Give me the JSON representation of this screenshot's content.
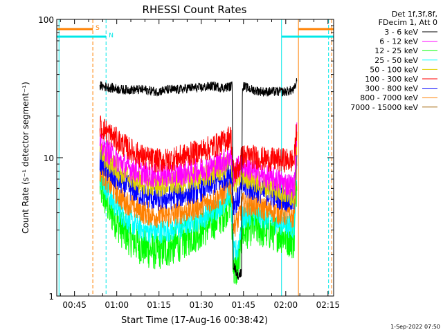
{
  "chart_data": {
    "type": "line",
    "title": "RHESSI Count Rates",
    "xlabel": "Start Time (17-Aug-16 00:38:42)",
    "ylabel": "Count Rate (s⁻¹ detector segment⁻¹)",
    "ylim": [
      1,
      100
    ],
    "y_scale": "log",
    "x_unit": "minutes since 00:00",
    "xlim": [
      38.7,
      137
    ],
    "x_ticks": [
      {
        "value": 45,
        "label": "00:45"
      },
      {
        "value": 60,
        "label": "01:00"
      },
      {
        "value": 75,
        "label": "01:15"
      },
      {
        "value": 90,
        "label": "01:30"
      },
      {
        "value": 105,
        "label": "01:45"
      },
      {
        "value": 120,
        "label": "02:00"
      },
      {
        "value": 135,
        "label": "02:15"
      }
    ],
    "y_ticks": [
      {
        "value": 1,
        "label": "1"
      },
      {
        "value": 10,
        "label": "10"
      },
      {
        "value": 100,
        "label": "100"
      }
    ],
    "legend": {
      "header": [
        "Det 1f,3f,8f,",
        "FDecim 1, Att 0"
      ],
      "placement": "right"
    },
    "series": [
      {
        "name": "3 - 6 keV",
        "color": "#000000",
        "x": [
          54,
          58,
          62,
          66,
          70,
          74,
          78,
          82,
          86,
          90,
          94,
          98,
          101,
          101.3,
          103,
          104.3,
          104.6,
          108,
          112,
          116,
          120,
          123,
          124
        ],
        "y": [
          33,
          32,
          31,
          31,
          31,
          30,
          31,
          31,
          32,
          32,
          33,
          32,
          33,
          1.7,
          1.4,
          1.5,
          33,
          31,
          30,
          30,
          30,
          31,
          36
        ]
      },
      {
        "name": "6 - 12 keV",
        "color": "#ff00ff",
        "x": [
          54,
          58,
          62,
          66,
          70,
          74,
          78,
          82,
          86,
          90,
          94,
          98,
          100.5,
          101.5,
          103,
          104.5,
          108,
          112,
          116,
          120,
          123,
          124
        ],
        "y": [
          12.5,
          10.5,
          9.0,
          8.2,
          7.6,
          7.4,
          7.5,
          7.6,
          7.9,
          8.2,
          8.7,
          9.5,
          10.5,
          7.5,
          8.5,
          9.0,
          8.0,
          7.3,
          7.0,
          6.5,
          6.2,
          17
        ]
      },
      {
        "name": "12 - 25 keV",
        "color": "#00ff00",
        "x": [
          54,
          58,
          62,
          66,
          70,
          74,
          78,
          82,
          86,
          90,
          94,
          98,
          100.5,
          101.5,
          103,
          104.5,
          108,
          112,
          116,
          120,
          123,
          124
        ],
        "y": [
          6.2,
          4.0,
          3.0,
          2.5,
          2.2,
          2.1,
          2.2,
          2.4,
          2.7,
          3.0,
          3.4,
          4.0,
          5.0,
          1.5,
          1.6,
          2.8,
          3.2,
          3.0,
          2.9,
          2.7,
          2.5,
          8
        ]
      },
      {
        "name": "25 - 50 keV",
        "color": "#00ffff",
        "x": [
          54,
          58,
          62,
          66,
          70,
          74,
          78,
          82,
          86,
          90,
          94,
          98,
          100.5,
          101.5,
          103,
          104.5,
          108,
          112,
          116,
          120,
          123,
          124
        ],
        "y": [
          7.6,
          5.0,
          3.9,
          3.3,
          3.0,
          2.9,
          3.0,
          3.1,
          3.4,
          3.7,
          4.1,
          4.8,
          5.8,
          2.0,
          2.2,
          3.6,
          4.0,
          3.7,
          3.5,
          3.3,
          3.1,
          10
        ]
      },
      {
        "name": "50 - 100 keV",
        "color": "#e0d000",
        "x": [
          54,
          58,
          62,
          66,
          70,
          74,
          78,
          82,
          86,
          90,
          94,
          98,
          100.5,
          101.5,
          103,
          104.5,
          108,
          112,
          116,
          120,
          123,
          124
        ],
        "y": [
          11.0,
          9.0,
          7.8,
          7.0,
          6.5,
          6.3,
          6.4,
          6.6,
          6.9,
          7.2,
          7.7,
          8.4,
          9.3,
          6.4,
          7.0,
          7.7,
          7.0,
          6.4,
          6.0,
          5.6,
          5.3,
          14
        ]
      },
      {
        "name": "100 - 300 keV",
        "color": "#ff0000",
        "x": [
          54,
          58,
          62,
          66,
          70,
          74,
          78,
          82,
          86,
          90,
          94,
          98,
          100.5,
          101.5,
          103,
          104.5,
          108,
          112,
          116,
          120,
          123,
          124
        ],
        "y": [
          17,
          14.5,
          12.5,
          11.0,
          10.0,
          9.5,
          9.6,
          10.0,
          10.6,
          11.2,
          12.0,
          13.0,
          14.5,
          7.7,
          8.3,
          10.2,
          10.2,
          9.8,
          9.6,
          9.6,
          9.5,
          18
        ]
      },
      {
        "name": "300 - 800 keV",
        "color": "#0000ff",
        "x": [
          54,
          58,
          62,
          66,
          70,
          74,
          78,
          82,
          86,
          90,
          94,
          98,
          100.5,
          101.5,
          103,
          104.5,
          108,
          112,
          116,
          120,
          123,
          124
        ],
        "y": [
          9.5,
          7.5,
          6.5,
          5.8,
          5.3,
          5.0,
          5.1,
          5.3,
          5.6,
          5.9,
          6.4,
          7.0,
          8.0,
          4.6,
          5.0,
          6.2,
          6.0,
          5.6,
          5.3,
          5.0,
          4.8,
          12
        ]
      },
      {
        "name": "800 - 7000 keV",
        "color": "#ff8000",
        "x": [
          54,
          58,
          62,
          66,
          70,
          74,
          78,
          82,
          86,
          90,
          94,
          98,
          100.5,
          101.5,
          103,
          104.5,
          108,
          112,
          116,
          120,
          123,
          124
        ],
        "y": [
          8.2,
          6.2,
          5.0,
          4.4,
          4.0,
          3.8,
          3.8,
          4.0,
          4.2,
          4.5,
          4.9,
          5.5,
          6.5,
          3.2,
          3.5,
          4.6,
          4.6,
          4.3,
          4.1,
          3.9,
          3.7,
          11
        ]
      },
      {
        "name": "7000 - 15000 keV",
        "color": "#a06000",
        "x": [],
        "y": []
      }
    ],
    "markers": [
      {
        "label": "S",
        "color": "#ff8000",
        "x": 51.5,
        "level": 85,
        "left_end": 38.7,
        "right_end": 125,
        "right_end_start": 124.5
      },
      {
        "label": "N",
        "color": "#00e8e8",
        "x": 56.2,
        "level": 75,
        "left_end": 38.7,
        "right_end": 118.5,
        "right_end_start": 118.5
      }
    ],
    "vertical_lines": [
      {
        "x": 39.5,
        "color": "#00e8e8",
        "style": "solid"
      },
      {
        "x": 51.5,
        "color": "#ff8000",
        "style": "dashed"
      },
      {
        "x": 56.2,
        "color": "#00e8e8",
        "style": "dashed"
      },
      {
        "x": 118.5,
        "color": "#00e8e8",
        "style": "solid"
      },
      {
        "x": 124.5,
        "color": "#ff8000",
        "style": "solid"
      },
      {
        "x": 135.2,
        "color": "#00e8e8",
        "style": "dashed"
      },
      {
        "x": 136.3,
        "color": "#ff8000",
        "style": "dashed"
      }
    ]
  },
  "timestamp": "1-Sep-2022 07:50"
}
